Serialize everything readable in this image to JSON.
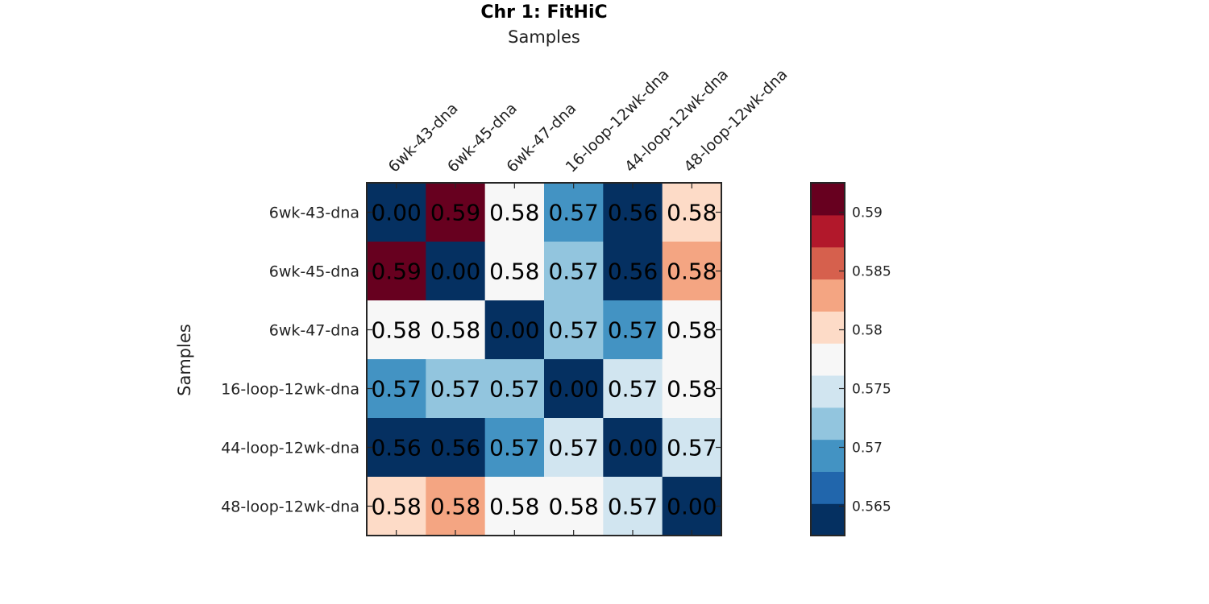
{
  "chart_data": {
    "type": "heatmap",
    "title": "Chr 1: FitHiC",
    "xlabel": "Samples",
    "ylabel": "Samples",
    "x_categories": [
      "6wk-43-dna",
      "6wk-45-dna",
      "6wk-47-dna",
      "16-loop-12wk-dna",
      "44-loop-12wk-dna",
      "48-loop-12wk-dna"
    ],
    "y_categories": [
      "6wk-43-dna",
      "6wk-45-dna",
      "6wk-47-dna",
      "16-loop-12wk-dna",
      "44-loop-12wk-dna",
      "48-loop-12wk-dna"
    ],
    "values": [
      [
        0.0,
        0.591,
        0.5775,
        0.5695,
        0.563,
        0.5805
      ],
      [
        0.591,
        0.0,
        0.5775,
        0.5715,
        0.563,
        0.5835
      ],
      [
        0.5775,
        0.5775,
        0.0,
        0.5715,
        0.5695,
        0.5775
      ],
      [
        0.5695,
        0.5715,
        0.5715,
        0.0,
        0.5735,
        0.5775
      ],
      [
        0.563,
        0.563,
        0.5695,
        0.5735,
        0.0,
        0.5735
      ],
      [
        0.5805,
        0.5835,
        0.5775,
        0.5775,
        0.5735,
        0.0
      ]
    ],
    "cell_labels": [
      [
        "0.00",
        "0.59",
        "0.58",
        "0.57",
        "0.56",
        "0.58"
      ],
      [
        "0.59",
        "0.00",
        "0.58",
        "0.57",
        "0.56",
        "0.58"
      ],
      [
        "0.58",
        "0.58",
        "0.00",
        "0.57",
        "0.57",
        "0.58"
      ],
      [
        "0.57",
        "0.57",
        "0.57",
        "0.00",
        "0.57",
        "0.58"
      ],
      [
        "0.56",
        "0.56",
        "0.57",
        "0.57",
        "0.00",
        "0.57"
      ],
      [
        "0.58",
        "0.58",
        "0.58",
        "0.58",
        "0.57",
        "0.00"
      ]
    ],
    "colorbar": {
      "range": [
        0.5625,
        0.5925
      ],
      "ticks": [
        0.565,
        0.57,
        0.575,
        0.58,
        0.585,
        0.59
      ],
      "tick_labels": [
        "0.565",
        "0.57",
        "0.575",
        "0.58",
        "0.585",
        "0.59"
      ],
      "colors": [
        "#053061",
        "#2166ac",
        "#4393c3",
        "#92c5de",
        "#d1e5f0",
        "#f7f7f7",
        "#fddbc7",
        "#f4a582",
        "#d6604d",
        "#b2182b",
        "#67001f"
      ]
    },
    "grid": false,
    "legend": "colorbar-right"
  }
}
